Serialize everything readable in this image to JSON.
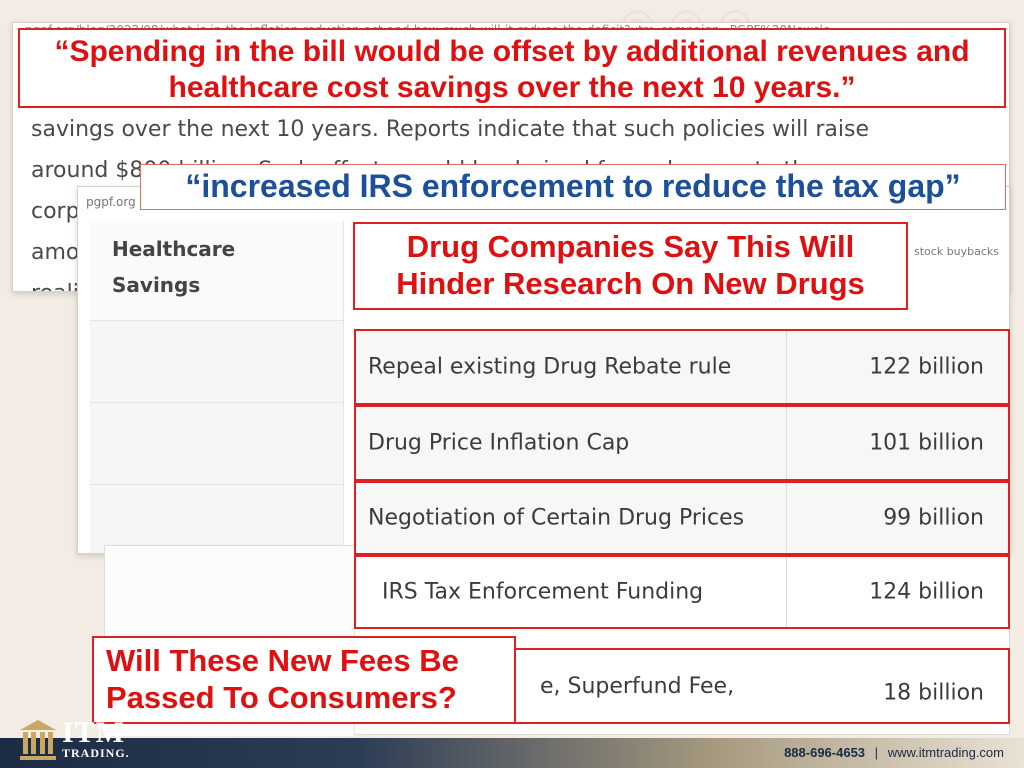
{
  "article": {
    "url": "pgpf.org/blog/2022/08/what-is-in-the-inflation-reduction-act-and-how-much-will-it-reduce-the-deficit?utm_campaign=PGPF%20Newsle",
    "text": "savings over the next 10 years. Reports indicate that such policies will raise\naround $800 billion. Such offsets would be derived from changes to the\ncorporate\namo\nreali"
  },
  "callouts": {
    "spending": "“Spending in the bill would be offset by additional revenues and healthcare cost savings over the next 10 years.”",
    "irs": "“increased IRS enforcement to reduce the tax gap”",
    "drug": "Drug Companies Say This Will Hinder Research On New Drugs",
    "fees": "Will These New Fees Be Passed To Consumers?"
  },
  "table": {
    "url": "pgpf.org",
    "heading": "Healthcare Savings",
    "stock_label": "stock buybacks",
    "rows": [
      {
        "label": "Repeal existing Drug Rebate rule",
        "value": "122 billion"
      },
      {
        "label": "Drug Price Inflation Cap",
        "value": "101 billion"
      },
      {
        "label": "Negotiation of Certain Drug Prices",
        "value": "99 billion"
      },
      {
        "label": "IRS Tax Enforcement Funding",
        "value": "124 billion"
      },
      {
        "label": "e, Superfund Fee,",
        "value": "18 billion"
      }
    ]
  },
  "footer": {
    "brand": "ITM",
    "brand_sub": "TRADING.",
    "phone": "888-696-4653",
    "separator": "|",
    "website": "www.itmtrading.com"
  },
  "colors": {
    "callout_red": "#e01010",
    "callout_blue": "#1e4f9a",
    "border_red": "#e02020",
    "footer_navy": "#1c2c44"
  }
}
